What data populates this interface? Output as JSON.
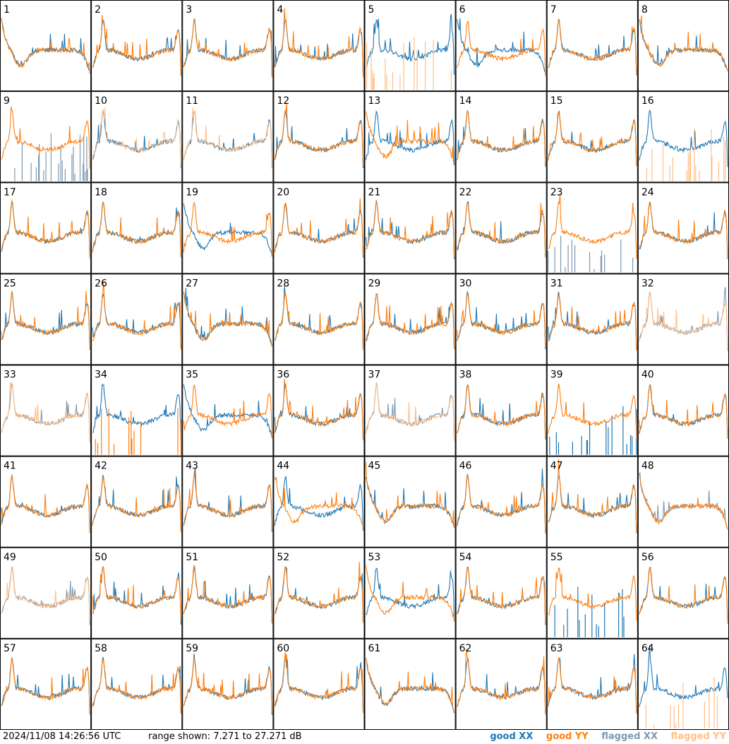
{
  "chart_data": {
    "type": "line",
    "layout": "grid",
    "panel_labels": [
      "1",
      "2",
      "3",
      "4",
      "5",
      "6",
      "7",
      "8",
      "9",
      "10",
      "11",
      "12",
      "13",
      "14",
      "15",
      "16",
      "17",
      "18",
      "19",
      "20",
      "21",
      "22",
      "23",
      "24",
      "25",
      "26",
      "27",
      "28",
      "29",
      "30",
      "31",
      "32",
      "33",
      "34",
      "35",
      "36",
      "37",
      "38",
      "39",
      "40",
      "41",
      "42",
      "43",
      "44",
      "45",
      "46",
      "47",
      "48",
      "49",
      "50",
      "51",
      "52",
      "53",
      "54",
      "55",
      "56",
      "57",
      "58",
      "59",
      "60",
      "61",
      "62",
      "63",
      "64"
    ],
    "ylim": [
      7.271,
      27.271
    ],
    "yunit": "dB",
    "series": [
      {
        "name": "good XX",
        "color": "#1f77b4"
      },
      {
        "name": "good YY",
        "color": "#ff7f0e"
      },
      {
        "name": "flagged XX",
        "color": "#7f99b2"
      },
      {
        "name": "flagged YY",
        "color": "#ffbf87"
      }
    ],
    "panel_status": {
      "5": {
        "xx": "good",
        "yy": "flagged",
        "yy_mode": "spikes"
      },
      "9": {
        "xx": "flagged",
        "yy": "good",
        "xx_mode": "spikes"
      },
      "10": {
        "xx": "good",
        "yy": "flagged"
      },
      "11": {
        "xx": "good",
        "yy": "flagged"
      },
      "16": {
        "xx": "good",
        "yy": "flagged",
        "yy_mode": "spikes"
      },
      "23": {
        "xx": "flagged",
        "yy": "good",
        "xx_mode": "spikes"
      },
      "32": {
        "xx": "flagged",
        "yy": "flagged"
      },
      "33": {
        "xx": "flagged",
        "yy": "flagged"
      },
      "34": {
        "xx": "good",
        "yy": "good",
        "yy_mode": "spikes"
      },
      "37": {
        "xx": "flagged",
        "yy": "flagged"
      },
      "39": {
        "xx": "good",
        "yy": "good",
        "xx_mode": "spikes"
      },
      "48": {
        "xx": "flagged",
        "yy": "good"
      },
      "49": {
        "xx": "flagged",
        "yy": "flagged"
      },
      "55": {
        "xx": "good",
        "yy": "good",
        "xx_mode": "spikes"
      },
      "64": {
        "xx": "good",
        "yy": "flagged",
        "yy_mode": "spikes"
      }
    },
    "panel_shape": {
      "1": {
        "xx": "dip",
        "yy": "dip"
      },
      "6": {
        "xx": "dip"
      },
      "8": {
        "xx": "dip",
        "yy": "dip"
      },
      "13": {
        "yy": "dip"
      },
      "19": {
        "xx": "dip"
      },
      "27": {
        "xx": "dip",
        "yy": "dip"
      },
      "35": {
        "xx": "dip"
      },
      "44": {
        "yy": "dip"
      },
      "45": {
        "xx": "dip",
        "yy": "dip"
      },
      "48": {
        "xx": "dip",
        "yy": "dip"
      },
      "53": {
        "yy": "dip"
      },
      "61": {
        "xx": "dip",
        "yy": "dip"
      }
    }
  },
  "footer": {
    "timestamp": "2024/11/08 14:26:56 UTC",
    "range_text": "range shown: 7.271 to 27.271 dB"
  },
  "legend": {
    "good_xx": "good XX",
    "good_yy": "good YY",
    "flagged_xx": "flagged XX",
    "flagged_yy": "flagged YY"
  }
}
